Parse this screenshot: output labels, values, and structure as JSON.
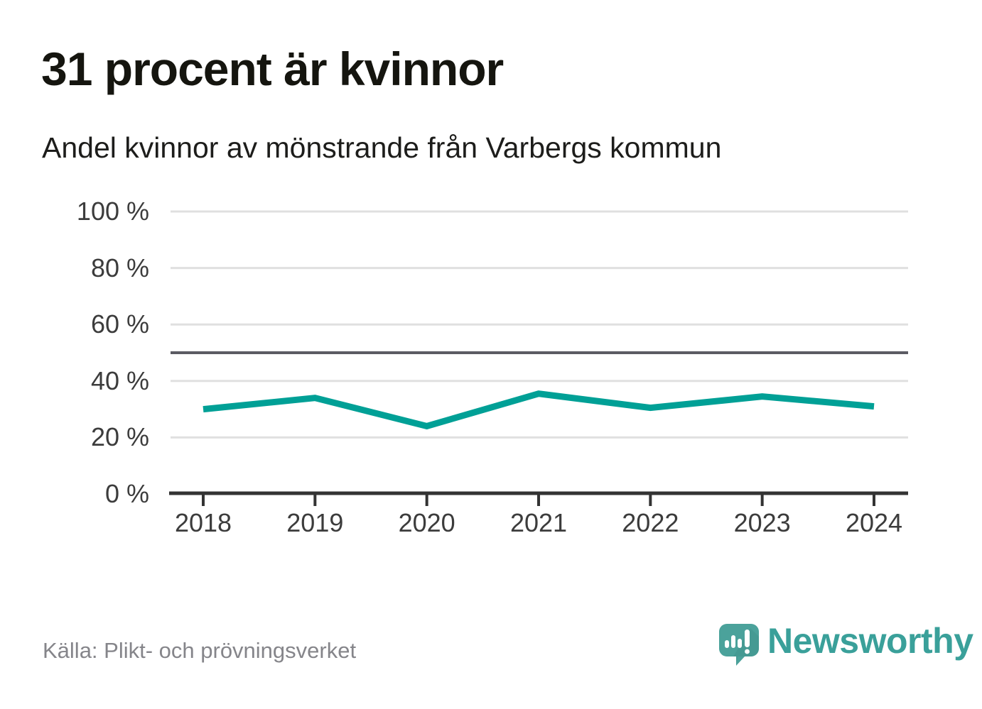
{
  "chart_data": {
    "type": "line",
    "title": "31 procent är kvinnor",
    "subtitle": "Andel kvinnor av mönstrande från Varbergs kommun",
    "x": [
      2018,
      2019,
      2020,
      2021,
      2022,
      2023,
      2024
    ],
    "xtick_labels": [
      "2018",
      "2019",
      "2020",
      "2021",
      "2022",
      "2023",
      "2024"
    ],
    "series": [
      {
        "name": "Andel kvinnor av mönstrande",
        "values": [
          30,
          34,
          24,
          35.5,
          30.5,
          34.5,
          31
        ]
      }
    ],
    "ylim": [
      0,
      100
    ],
    "yticks": [
      0,
      20,
      40,
      60,
      80,
      100
    ],
    "ytick_labels": [
      "0 %",
      "20 %",
      "40 %",
      "60 %",
      "80 %",
      "100 %"
    ],
    "reference_line_y": 50,
    "grid": "horizontal",
    "legend": "none"
  },
  "footer": {
    "source": "Källa: Plikt- och prövningsverket",
    "logo_text": "Newsworthy"
  },
  "colors": {
    "line_teal": "#00A096",
    "grid_gray": "#E0E0E0",
    "reference_gray": "#5B5B63",
    "axis_dark": "#333333",
    "logo_bubble_teal": "#4BA29B",
    "logo_shadow": "#42938D",
    "logo_text_teal": "#3AA09A",
    "title_dark": "#15150F",
    "tick_text_gray": "#3C3C3C",
    "source_gray": "#85858A"
  }
}
